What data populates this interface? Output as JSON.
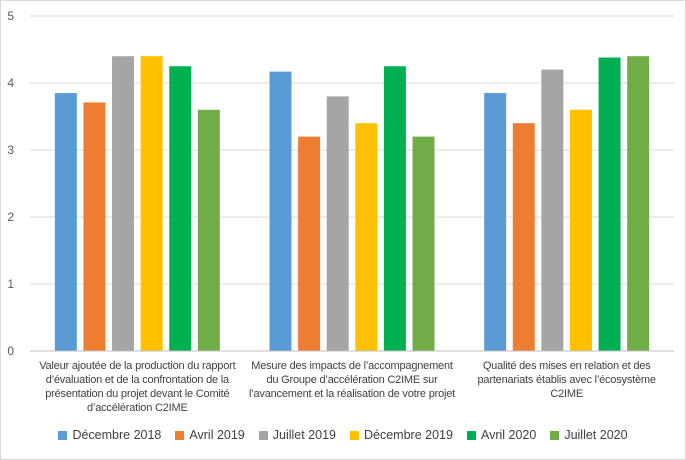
{
  "chart_data": {
    "type": "bar",
    "title": "",
    "xlabel": "",
    "ylabel": "",
    "ylim": [
      0,
      5
    ],
    "yticks": [
      0,
      1,
      2,
      3,
      4,
      5
    ],
    "grid": true,
    "legend_position": "bottom",
    "categories": [
      "Valeur ajoutée de la production du rapport d’évaluation et de la confrontation de la présentation du projet devant le Comité d’accélération C2IME",
      "Mesure des impacts de l’accompagnement du Groupe d’accélération C2IME sur l’avancement et la réalisation de votre projet",
      "Qualité des mises en relation et des partenariats établis avec l’écosystème C2IME"
    ],
    "series": [
      {
        "name": "Décembre 2018",
        "color": "#5b9bd5",
        "values": [
          3.85,
          4.17,
          3.85
        ]
      },
      {
        "name": "Avril 2019",
        "color": "#ed7d31",
        "values": [
          3.71,
          3.2,
          3.4
        ]
      },
      {
        "name": "Juillet 2019",
        "color": "#a5a5a5",
        "values": [
          4.4,
          3.8,
          4.2
        ]
      },
      {
        "name": "Décembre 2019",
        "color": "#ffc000",
        "values": [
          4.4,
          3.4,
          3.6
        ]
      },
      {
        "name": "Avril 2020",
        "color": "#00b050",
        "values": [
          4.25,
          4.25,
          4.38
        ]
      },
      {
        "name": "Juillet 2020",
        "color": "#70ad47",
        "values": [
          3.6,
          3.2,
          4.4
        ]
      }
    ]
  },
  "colors": {
    "gridline": "#d9d9d9",
    "axis": "#bfbfbf"
  }
}
